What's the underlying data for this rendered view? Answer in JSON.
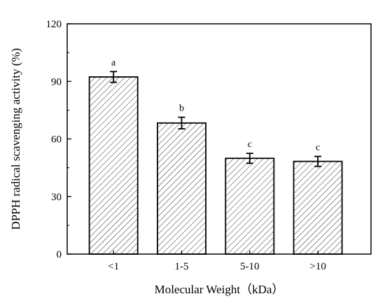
{
  "chart_data": {
    "type": "bar",
    "categories": [
      "<1",
      "1-5",
      "5-10",
      ">10"
    ],
    "values": [
      92.3,
      68.3,
      49.9,
      48.3
    ],
    "errors": [
      2.8,
      3.0,
      2.6,
      2.6
    ],
    "significance": [
      "a",
      "b",
      "c",
      "c"
    ],
    "ylim": [
      0,
      120
    ],
    "yticks": [
      "0",
      "30",
      "60",
      "90",
      "120"
    ],
    "xlabel": "Molecular Weight（kDa）",
    "ylabel": "DPPH radical scavenging activity (%)",
    "bar_fill": "hatched",
    "bar_color": "#000000",
    "grid": false,
    "legend": "none"
  }
}
